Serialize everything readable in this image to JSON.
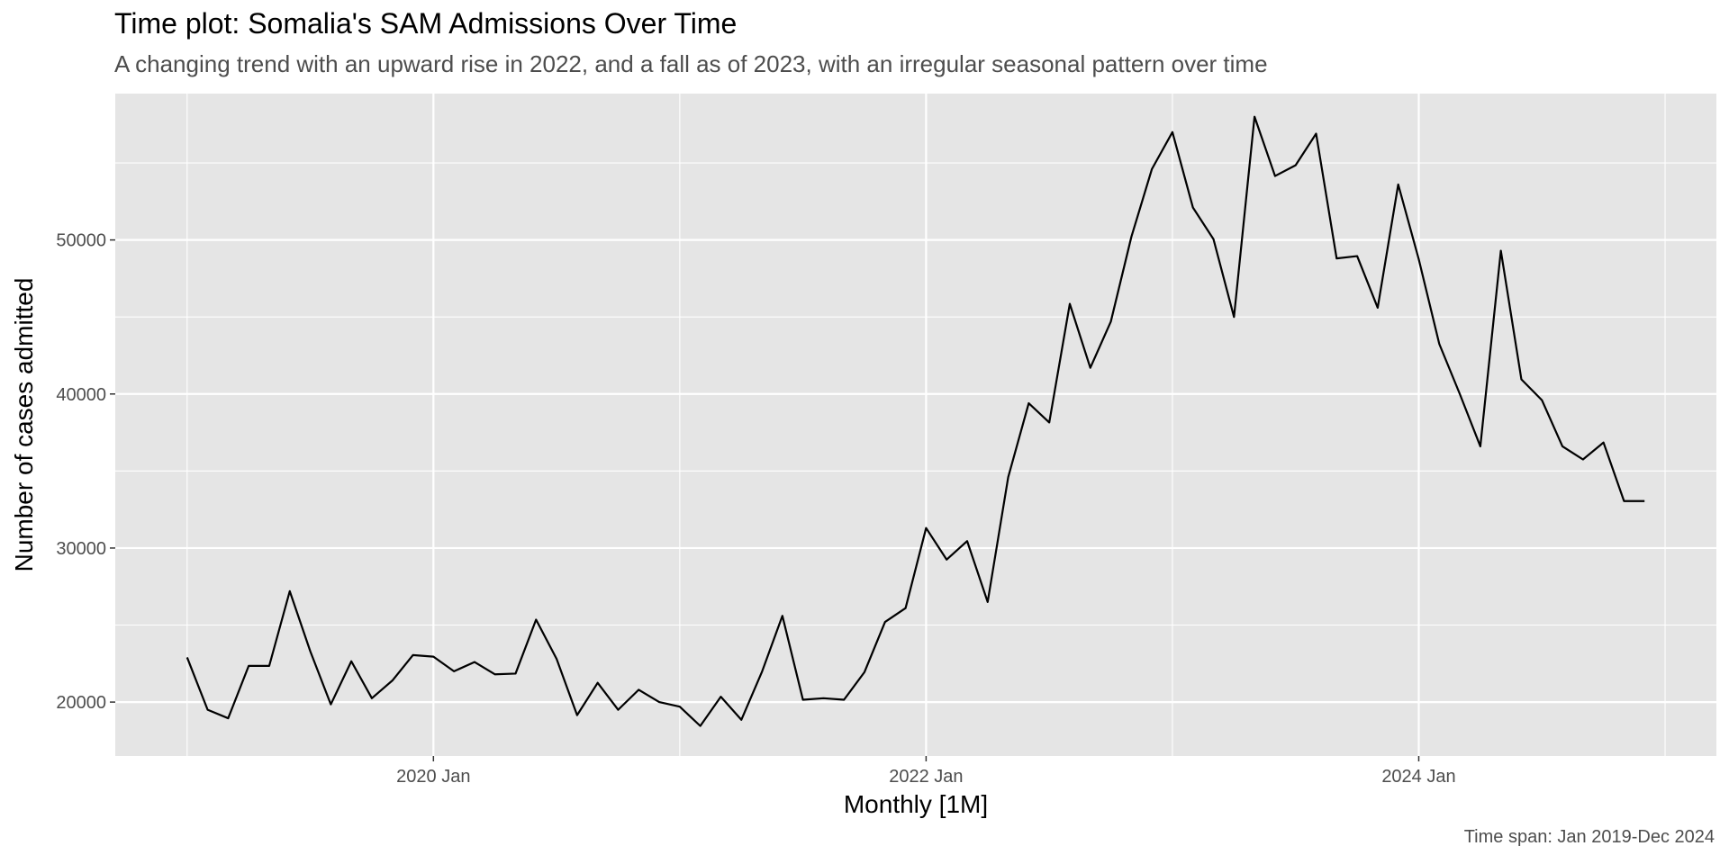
{
  "chart_data": {
    "type": "line",
    "title": "Time plot: Somalia's SAM Admissions Over Time",
    "subtitle": "A changing trend with an upward rise in 2022, and a fall as of 2023, with an irregular seasonal pattern over time",
    "caption": "Time span: Jan 2019-Dec 2024",
    "xlabel": "Monthly [1M]",
    "ylabel": "Number of cases admitted",
    "x_start": "2019-01",
    "x_end": "2024-12",
    "x_ticks": [
      {
        "month_index": 12,
        "label": "2020 Jan"
      },
      {
        "month_index": 36,
        "label": "2022 Jan"
      },
      {
        "month_index": 60,
        "label": "2024 Jan"
      }
    ],
    "y_ticks": [
      20000,
      30000,
      40000,
      50000
    ],
    "ylim": [
      16500,
      59500
    ],
    "xlim_months": [
      -3.5,
      74.5
    ],
    "grid": true,
    "colors": {
      "panel": "#e5e5e5",
      "grid": "#ffffff",
      "line": "#000000"
    },
    "series": [
      {
        "values": [
          22900,
          19500,
          18950,
          22350,
          22350,
          27200,
          23300,
          19850,
          22650,
          20250,
          21400,
          23050,
          22950,
          22000,
          22600,
          21800,
          21850,
          25350,
          22800,
          19150,
          21250,
          19500,
          20800,
          20000,
          19700,
          18450,
          20350,
          18850,
          21950,
          25600,
          20150,
          20250,
          20150,
          21950,
          25200,
          26100,
          31300,
          29250,
          30450,
          26500,
          34600,
          39400,
          38150,
          45850,
          41700,
          44700,
          50200,
          54600,
          57000,
          52100,
          50050,
          45000,
          58000,
          54150,
          54850,
          56900,
          48800,
          48950,
          45600,
          53600,
          48750,
          43250,
          40000,
          36600,
          49300,
          40950,
          39600,
          36600,
          35750,
          36850,
          33050,
          33050
        ]
      }
    ]
  }
}
